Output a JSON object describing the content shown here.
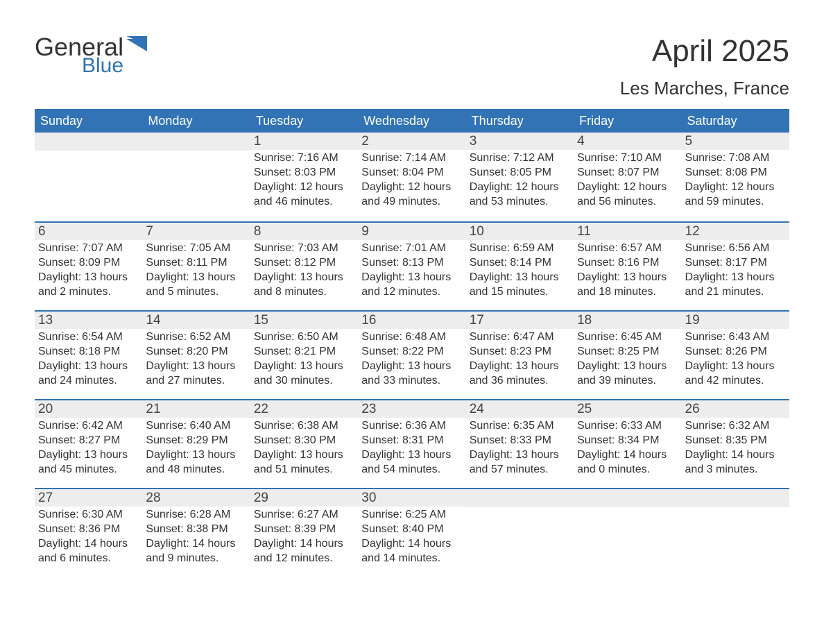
{
  "brand": {
    "text1": "General",
    "text2": "Blue",
    "icon_color": "#3173b5"
  },
  "title": {
    "month": "April 2025",
    "location": "Les Marches, France"
  },
  "colors": {
    "header_bg": "#3173b5",
    "header_fg": "#ffffff",
    "strip_bg": "#ededed",
    "text": "#333333",
    "week_border": "#3173b5",
    "background": "#ffffff"
  },
  "typography": {
    "month_title_fontsize": 44,
    "location_fontsize": 26,
    "day_header_fontsize": 18,
    "day_num_fontsize": 19,
    "body_fontsize": 16
  },
  "day_headers": [
    "Sunday",
    "Monday",
    "Tuesday",
    "Wednesday",
    "Thursday",
    "Friday",
    "Saturday"
  ],
  "weeks": [
    [
      {
        "day": "",
        "sunrise": "",
        "sunset": "",
        "daylight": ""
      },
      {
        "day": "",
        "sunrise": "",
        "sunset": "",
        "daylight": ""
      },
      {
        "day": "1",
        "sunrise": "Sunrise: 7:16 AM",
        "sunset": "Sunset: 8:03 PM",
        "daylight": "Daylight: 12 hours and 46 minutes."
      },
      {
        "day": "2",
        "sunrise": "Sunrise: 7:14 AM",
        "sunset": "Sunset: 8:04 PM",
        "daylight": "Daylight: 12 hours and 49 minutes."
      },
      {
        "day": "3",
        "sunrise": "Sunrise: 7:12 AM",
        "sunset": "Sunset: 8:05 PM",
        "daylight": "Daylight: 12 hours and 53 minutes."
      },
      {
        "day": "4",
        "sunrise": "Sunrise: 7:10 AM",
        "sunset": "Sunset: 8:07 PM",
        "daylight": "Daylight: 12 hours and 56 minutes."
      },
      {
        "day": "5",
        "sunrise": "Sunrise: 7:08 AM",
        "sunset": "Sunset: 8:08 PM",
        "daylight": "Daylight: 12 hours and 59 minutes."
      }
    ],
    [
      {
        "day": "6",
        "sunrise": "Sunrise: 7:07 AM",
        "sunset": "Sunset: 8:09 PM",
        "daylight": "Daylight: 13 hours and 2 minutes."
      },
      {
        "day": "7",
        "sunrise": "Sunrise: 7:05 AM",
        "sunset": "Sunset: 8:11 PM",
        "daylight": "Daylight: 13 hours and 5 minutes."
      },
      {
        "day": "8",
        "sunrise": "Sunrise: 7:03 AM",
        "sunset": "Sunset: 8:12 PM",
        "daylight": "Daylight: 13 hours and 8 minutes."
      },
      {
        "day": "9",
        "sunrise": "Sunrise: 7:01 AM",
        "sunset": "Sunset: 8:13 PM",
        "daylight": "Daylight: 13 hours and 12 minutes."
      },
      {
        "day": "10",
        "sunrise": "Sunrise: 6:59 AM",
        "sunset": "Sunset: 8:14 PM",
        "daylight": "Daylight: 13 hours and 15 minutes."
      },
      {
        "day": "11",
        "sunrise": "Sunrise: 6:57 AM",
        "sunset": "Sunset: 8:16 PM",
        "daylight": "Daylight: 13 hours and 18 minutes."
      },
      {
        "day": "12",
        "sunrise": "Sunrise: 6:56 AM",
        "sunset": "Sunset: 8:17 PM",
        "daylight": "Daylight: 13 hours and 21 minutes."
      }
    ],
    [
      {
        "day": "13",
        "sunrise": "Sunrise: 6:54 AM",
        "sunset": "Sunset: 8:18 PM",
        "daylight": "Daylight: 13 hours and 24 minutes."
      },
      {
        "day": "14",
        "sunrise": "Sunrise: 6:52 AM",
        "sunset": "Sunset: 8:20 PM",
        "daylight": "Daylight: 13 hours and 27 minutes."
      },
      {
        "day": "15",
        "sunrise": "Sunrise: 6:50 AM",
        "sunset": "Sunset: 8:21 PM",
        "daylight": "Daylight: 13 hours and 30 minutes."
      },
      {
        "day": "16",
        "sunrise": "Sunrise: 6:48 AM",
        "sunset": "Sunset: 8:22 PM",
        "daylight": "Daylight: 13 hours and 33 minutes."
      },
      {
        "day": "17",
        "sunrise": "Sunrise: 6:47 AM",
        "sunset": "Sunset: 8:23 PM",
        "daylight": "Daylight: 13 hours and 36 minutes."
      },
      {
        "day": "18",
        "sunrise": "Sunrise: 6:45 AM",
        "sunset": "Sunset: 8:25 PM",
        "daylight": "Daylight: 13 hours and 39 minutes."
      },
      {
        "day": "19",
        "sunrise": "Sunrise: 6:43 AM",
        "sunset": "Sunset: 8:26 PM",
        "daylight": "Daylight: 13 hours and 42 minutes."
      }
    ],
    [
      {
        "day": "20",
        "sunrise": "Sunrise: 6:42 AM",
        "sunset": "Sunset: 8:27 PM",
        "daylight": "Daylight: 13 hours and 45 minutes."
      },
      {
        "day": "21",
        "sunrise": "Sunrise: 6:40 AM",
        "sunset": "Sunset: 8:29 PM",
        "daylight": "Daylight: 13 hours and 48 minutes."
      },
      {
        "day": "22",
        "sunrise": "Sunrise: 6:38 AM",
        "sunset": "Sunset: 8:30 PM",
        "daylight": "Daylight: 13 hours and 51 minutes."
      },
      {
        "day": "23",
        "sunrise": "Sunrise: 6:36 AM",
        "sunset": "Sunset: 8:31 PM",
        "daylight": "Daylight: 13 hours and 54 minutes."
      },
      {
        "day": "24",
        "sunrise": "Sunrise: 6:35 AM",
        "sunset": "Sunset: 8:33 PM",
        "daylight": "Daylight: 13 hours and 57 minutes."
      },
      {
        "day": "25",
        "sunrise": "Sunrise: 6:33 AM",
        "sunset": "Sunset: 8:34 PM",
        "daylight": "Daylight: 14 hours and 0 minutes."
      },
      {
        "day": "26",
        "sunrise": "Sunrise: 6:32 AM",
        "sunset": "Sunset: 8:35 PM",
        "daylight": "Daylight: 14 hours and 3 minutes."
      }
    ],
    [
      {
        "day": "27",
        "sunrise": "Sunrise: 6:30 AM",
        "sunset": "Sunset: 8:36 PM",
        "daylight": "Daylight: 14 hours and 6 minutes."
      },
      {
        "day": "28",
        "sunrise": "Sunrise: 6:28 AM",
        "sunset": "Sunset: 8:38 PM",
        "daylight": "Daylight: 14 hours and 9 minutes."
      },
      {
        "day": "29",
        "sunrise": "Sunrise: 6:27 AM",
        "sunset": "Sunset: 8:39 PM",
        "daylight": "Daylight: 14 hours and 12 minutes."
      },
      {
        "day": "30",
        "sunrise": "Sunrise: 6:25 AM",
        "sunset": "Sunset: 8:40 PM",
        "daylight": "Daylight: 14 hours and 14 minutes."
      },
      {
        "day": "",
        "sunrise": "",
        "sunset": "",
        "daylight": ""
      },
      {
        "day": "",
        "sunrise": "",
        "sunset": "",
        "daylight": ""
      },
      {
        "day": "",
        "sunrise": "",
        "sunset": "",
        "daylight": ""
      }
    ]
  ]
}
